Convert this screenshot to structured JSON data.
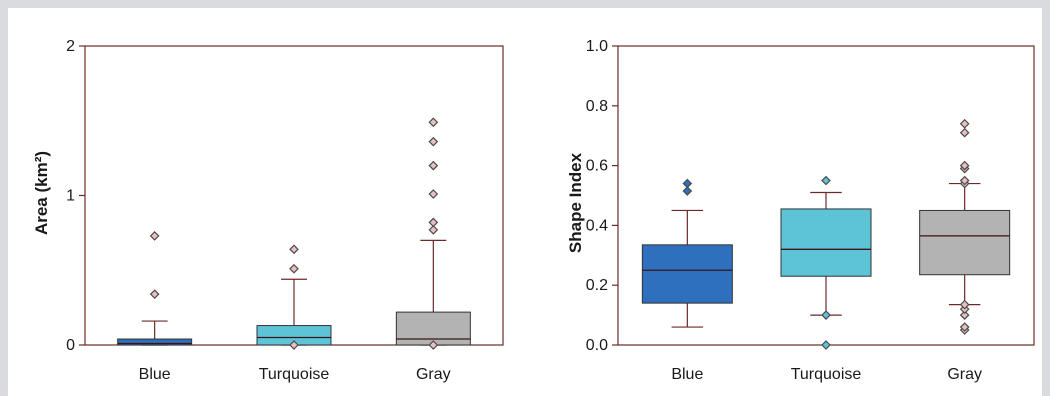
{
  "colors": {
    "frame": "#6b2a2a",
    "whisker": "#6b2a2a",
    "median": "#3a1515",
    "outlier_stroke": "#4a4a4a",
    "outlier_fill": "#e8c0c0"
  },
  "chart_data": [
    {
      "type": "box",
      "ylabel": "Area (km²)",
      "ylim": [
        0,
        2
      ],
      "yticks": [
        0,
        1,
        2
      ],
      "ytick_labels": [
        "0",
        "1",
        "2"
      ],
      "categories": [
        "Blue",
        "Turquoise",
        "Gray"
      ],
      "colors": [
        "#2e6fbe",
        "#5cc4d6",
        "#b3b3b3"
      ],
      "boxes": [
        {
          "q1": 0.0,
          "median": 0.01,
          "q3": 0.04,
          "whislo": 0.0,
          "whishi": 0.16,
          "fliers": [
            0.34,
            0.73
          ]
        },
        {
          "q1": 0.0,
          "median": 0.05,
          "q3": 0.13,
          "whislo": 0.0,
          "whishi": 0.44,
          "fliers": [
            0.0,
            0.51,
            0.64
          ]
        },
        {
          "q1": 0.0,
          "median": 0.04,
          "q3": 0.22,
          "whislo": 0.0,
          "whishi": 0.7,
          "fliers": [
            0.0,
            0.77,
            0.82,
            1.01,
            1.2,
            1.36,
            1.49
          ]
        }
      ]
    },
    {
      "type": "box",
      "ylabel": "Shape Index",
      "ylim": [
        0,
        1
      ],
      "yticks": [
        0,
        0.2,
        0.4,
        0.6,
        0.8,
        1.0
      ],
      "ytick_labels": [
        "0.0",
        "0.2",
        "0.4",
        "0.6",
        "0.8",
        "1.0"
      ],
      "categories": [
        "Blue",
        "Turquoise",
        "Gray"
      ],
      "colors": [
        "#2e6fbe",
        "#5cc4d6",
        "#b3b3b3"
      ],
      "boxes": [
        {
          "q1": 0.14,
          "median": 0.25,
          "q3": 0.335,
          "whislo": 0.06,
          "whishi": 0.45,
          "fliers": [
            0.515,
            0.54
          ]
        },
        {
          "q1": 0.23,
          "median": 0.32,
          "q3": 0.455,
          "whislo": 0.1,
          "whishi": 0.51,
          "fliers": [
            0.0,
            0.1,
            0.55
          ]
        },
        {
          "q1": 0.235,
          "median": 0.365,
          "q3": 0.45,
          "whislo": 0.135,
          "whishi": 0.54,
          "fliers": [
            0.05,
            0.06,
            0.1,
            0.12,
            0.135,
            0.54,
            0.55,
            0.59,
            0.6,
            0.71,
            0.74
          ]
        }
      ]
    }
  ]
}
